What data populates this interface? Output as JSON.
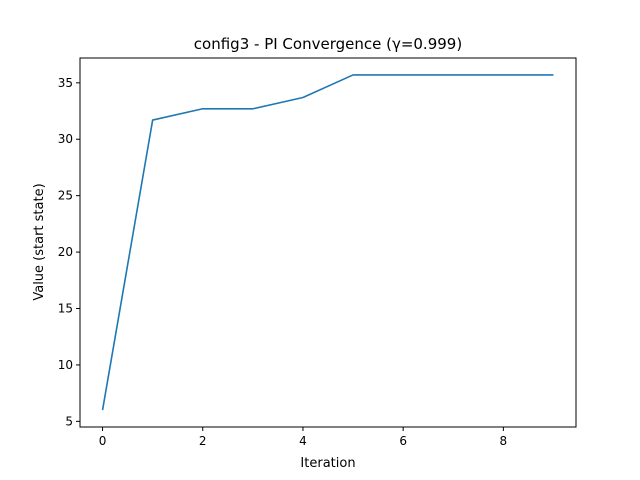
{
  "chart_data": {
    "type": "line",
    "title": "config3 - PI Convergence (γ=0.999)",
    "xlabel": "Iteration",
    "ylabel": "Value (start state)",
    "xlim": [
      -0.45,
      9.45
    ],
    "ylim": [
      4.5,
      37.2
    ],
    "x_ticks": [
      0,
      2,
      4,
      6,
      8
    ],
    "y_ticks": [
      5,
      10,
      15,
      20,
      25,
      30,
      35
    ],
    "grid": false,
    "legend": "none",
    "series": [
      {
        "x": [
          0,
          1,
          2,
          3,
          4,
          5,
          6,
          7,
          8,
          9
        ],
        "values": [
          6.0,
          31.7,
          32.7,
          32.7,
          33.7,
          35.7,
          35.7,
          35.7,
          35.7,
          35.7
        ],
        "color": "#1f77b4"
      }
    ]
  }
}
